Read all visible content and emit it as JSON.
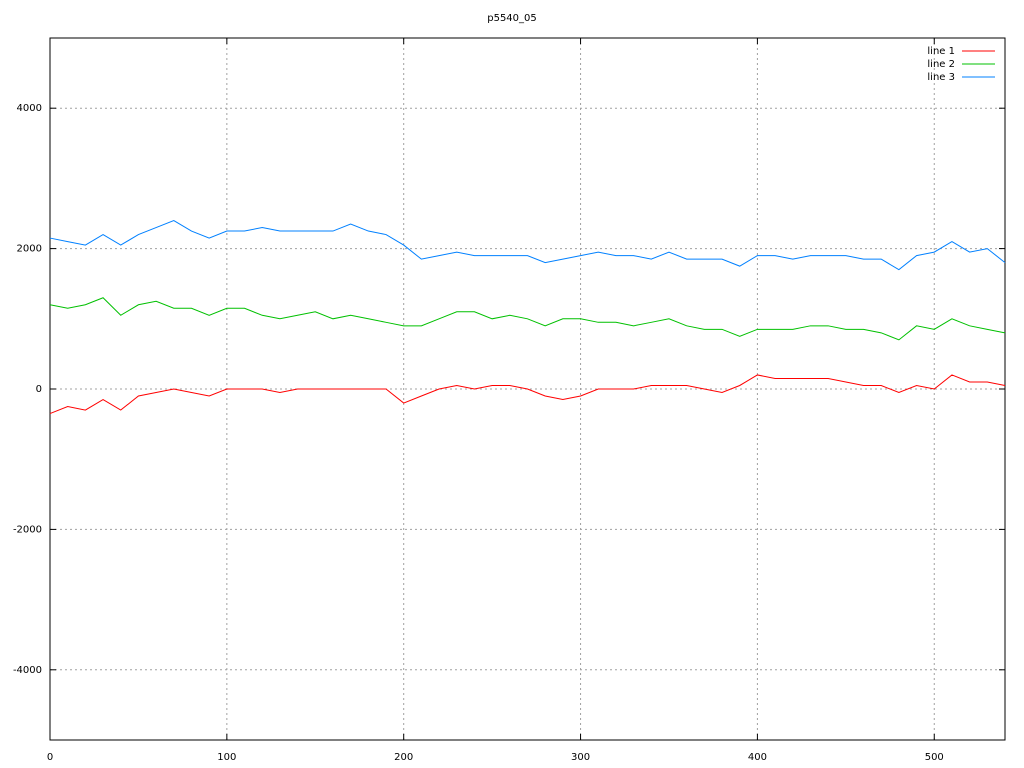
{
  "chart_data": {
    "type": "line",
    "title": "p5540_05",
    "x": [
      0,
      10,
      20,
      30,
      40,
      50,
      60,
      70,
      80,
      90,
      100,
      110,
      120,
      130,
      140,
      150,
      160,
      170,
      180,
      190,
      200,
      210,
      220,
      230,
      240,
      250,
      260,
      270,
      280,
      290,
      300,
      310,
      320,
      330,
      340,
      350,
      360,
      370,
      380,
      390,
      400,
      410,
      420,
      430,
      440,
      450,
      460,
      470,
      480,
      490,
      500,
      510,
      520,
      530,
      540
    ],
    "series": [
      {
        "name": "line 1",
        "color": "#ff0000",
        "values": [
          -350,
          -250,
          -300,
          -150,
          -300,
          -100,
          -50,
          0,
          -50,
          -100,
          0,
          0,
          0,
          -50,
          0,
          0,
          0,
          0,
          0,
          0,
          -200,
          -100,
          0,
          50,
          0,
          50,
          50,
          0,
          -100,
          -150,
          -100,
          0,
          0,
          0,
          50,
          50,
          50,
          0,
          -50,
          50,
          200,
          150,
          150,
          150,
          150,
          100,
          50,
          50,
          -50,
          50,
          0,
          200,
          100,
          100,
          50
        ]
      },
      {
        "name": "line 2",
        "color": "#00c000",
        "values": [
          1200,
          1150,
          1200,
          1300,
          1050,
          1200,
          1250,
          1150,
          1150,
          1050,
          1150,
          1150,
          1050,
          1000,
          1050,
          1100,
          1000,
          1050,
          1000,
          950,
          900,
          900,
          1000,
          1100,
          1100,
          1000,
          1050,
          1000,
          900,
          1000,
          1000,
          950,
          950,
          900,
          950,
          1000,
          900,
          850,
          850,
          750,
          850,
          850,
          850,
          900,
          900,
          850,
          850,
          800,
          700,
          900,
          850,
          1000,
          900,
          850,
          800
        ]
      },
      {
        "name": "line 3",
        "color": "#0080ff",
        "values": [
          2150,
          2100,
          2050,
          2200,
          2050,
          2200,
          2300,
          2400,
          2250,
          2150,
          2250,
          2250,
          2300,
          2250,
          2250,
          2250,
          2250,
          2350,
          2250,
          2200,
          2050,
          1850,
          1900,
          1950,
          1900,
          1900,
          1900,
          1900,
          1800,
          1850,
          1900,
          1950,
          1900,
          1900,
          1850,
          1950,
          1850,
          1850,
          1850,
          1750,
          1900,
          1900,
          1850,
          1900,
          1900,
          1900,
          1850,
          1850,
          1700,
          1900,
          1950,
          2100,
          1950,
          2000,
          1800
        ]
      }
    ],
    "xlim": [
      0,
      540
    ],
    "ylim": [
      -5000,
      5000
    ],
    "xticks": [
      0,
      100,
      200,
      300,
      400,
      500
    ],
    "yticks": [
      -4000,
      -2000,
      0,
      2000,
      4000
    ],
    "grid": true,
    "legend": "top-right"
  }
}
